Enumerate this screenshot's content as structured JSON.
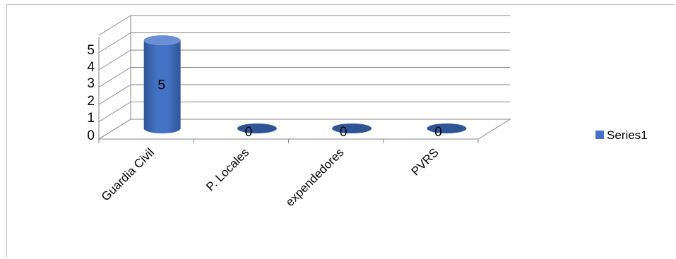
{
  "chart_data": {
    "type": "bar",
    "style": "3d-cylinder",
    "categories": [
      "Guardia Civil",
      "P. Locales",
      "expendedores",
      "PVRS"
    ],
    "series": [
      {
        "name": "Series1",
        "values": [
          5,
          0,
          0,
          0
        ]
      }
    ],
    "ylim": [
      0,
      5
    ],
    "yticks": [
      "0",
      "1",
      "2",
      "3",
      "4",
      "5"
    ],
    "data_labels": [
      "5",
      "0",
      "0",
      "0"
    ],
    "grid": true,
    "legend_position": "right",
    "colors": {
      "bar": "#4472c4",
      "bar_dark": "#2f5597",
      "bar_top": "#6a8fd6",
      "grid": "#868686",
      "text": "#000000"
    }
  }
}
